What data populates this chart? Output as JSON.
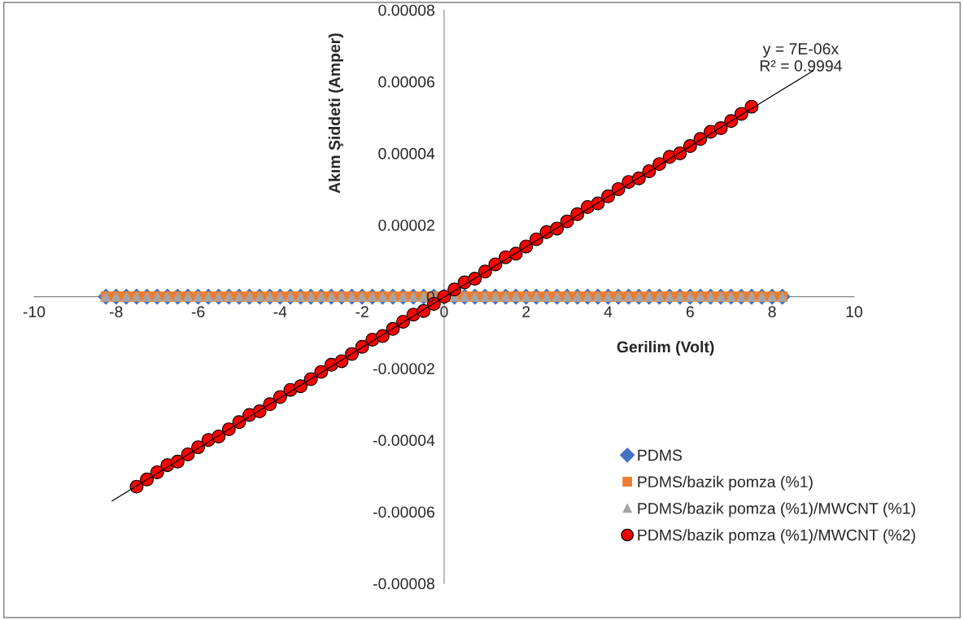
{
  "chart_data": {
    "type": "scatter",
    "xlabel": "Gerilim (Volt)",
    "ylabel": "Akım Şiddeti (Amper)",
    "annotations": [
      "y = 7E-06x\nR² = 0.9994"
    ],
    "xlim": [
      -10,
      10
    ],
    "xticks": [
      -10,
      -8,
      -6,
      -4,
      -2,
      0,
      2,
      4,
      6,
      8,
      10
    ],
    "ylim": [
      -8e-05,
      8e-05
    ],
    "yticks": [
      {
        "value": -8e-05,
        "label": "-0.00008"
      },
      {
        "value": -6e-05,
        "label": "-0.00006"
      },
      {
        "value": -4e-05,
        "label": "-0.00004"
      },
      {
        "value": -2e-05,
        "label": "-0.00002"
      },
      {
        "value": 0,
        "label": "0"
      },
      {
        "value": 2e-05,
        "label": "0.00002"
      },
      {
        "value": 4e-05,
        "label": "0.00004"
      },
      {
        "value": 6e-05,
        "label": "0.00006"
      },
      {
        "value": 8e-05,
        "label": "0.00008"
      }
    ],
    "grid": false,
    "legend": "bottom right",
    "x": [
      -8.25,
      -8,
      -7.75,
      -7.5,
      -7.25,
      -7,
      -6.75,
      -6.5,
      -6.25,
      -6,
      -5.75,
      -5.5,
      -5.25,
      -5,
      -4.75,
      -4.5,
      -4.25,
      -4,
      -3.75,
      -3.5,
      -3.25,
      -3,
      -2.75,
      -2.5,
      -2.25,
      -2,
      -1.75,
      -1.5,
      -1.25,
      -1,
      -0.75,
      -0.5,
      -0.25,
      0,
      0.25,
      0.5,
      0.75,
      1,
      1.25,
      1.5,
      1.75,
      2,
      2.25,
      2.5,
      2.75,
      3,
      3.25,
      3.5,
      3.75,
      4,
      4.25,
      4.5,
      4.75,
      5,
      5.25,
      5.5,
      5.75,
      6,
      6.25,
      6.5,
      6.75,
      7,
      7.25,
      7.5,
      7.75,
      8,
      8.25
    ],
    "series": [
      {
        "name": "PDMS",
        "color": "#4472c4",
        "marker": "diamond",
        "values": [
          0,
          0,
          0,
          0,
          0,
          0,
          0,
          0,
          0,
          0,
          0,
          0,
          0,
          0,
          0,
          0,
          0,
          0,
          0,
          0,
          0,
          0,
          0,
          0,
          0,
          0,
          0,
          0,
          0,
          0,
          0,
          0,
          0,
          0,
          0,
          0,
          0,
          0,
          0,
          0,
          0,
          0,
          0,
          0,
          0,
          0,
          0,
          0,
          0,
          0,
          0,
          0,
          0,
          0,
          0,
          0,
          0,
          0,
          0,
          0,
          0,
          0,
          0,
          0,
          0,
          0,
          0
        ]
      },
      {
        "name": "PDMS/bazik pomza (%1)",
        "color": "#ed7d31",
        "marker": "square",
        "values": [
          0,
          0,
          0,
          0,
          0,
          0,
          0,
          0,
          0,
          0,
          0,
          0,
          0,
          0,
          0,
          0,
          0,
          0,
          0,
          0,
          0,
          0,
          0,
          0,
          0,
          0,
          0,
          0,
          0,
          0,
          0,
          0,
          0,
          null,
          0,
          0,
          0,
          0,
          0,
          0,
          0,
          0,
          0,
          0,
          0,
          0,
          0,
          0,
          0,
          0,
          0,
          0,
          0,
          0,
          0,
          0,
          0,
          0,
          0,
          0,
          0,
          0,
          0,
          0,
          0,
          0,
          0
        ]
      },
      {
        "name": "PDMS/bazik pomza (%1)/MWCNT (%1)",
        "color": "#a5a5a5",
        "marker": "triangle",
        "values": [
          0,
          0,
          0,
          0,
          0,
          0,
          0,
          0,
          0,
          0,
          0,
          0,
          0,
          0,
          0,
          0,
          0,
          0,
          0,
          0,
          0,
          0,
          0,
          0,
          0,
          0,
          0,
          0,
          0,
          0,
          0,
          0,
          0,
          null,
          0,
          0,
          0,
          0,
          0,
          0,
          0,
          0,
          0,
          0,
          0,
          0,
          0,
          0,
          0,
          0,
          0,
          0,
          0,
          0,
          0,
          0,
          0,
          0,
          0,
          0,
          0,
          0,
          0,
          0,
          0,
          0,
          0
        ]
      },
      {
        "name": "PDMS/bazik pomza (%1)/MWCNT (%2)",
        "color": "#ff0000",
        "marker": "circle",
        "x": [
          -7.5,
          -7.25,
          -7,
          -6.75,
          -6.5,
          -6.25,
          -6,
          -5.75,
          -5.5,
          -5.25,
          -5,
          -4.75,
          -4.5,
          -4.25,
          -4,
          -3.75,
          -3.5,
          -3.25,
          -3,
          -2.75,
          -2.5,
          -2.25,
          -2,
          -1.75,
          -1.5,
          -1.25,
          -1,
          -0.75,
          -0.5,
          -0.25,
          0,
          0.25,
          0.5,
          0.75,
          1,
          1.25,
          1.5,
          1.75,
          2,
          2.25,
          2.5,
          2.75,
          3,
          3.25,
          3.5,
          3.75,
          4,
          4.25,
          4.5,
          4.75,
          5,
          5.25,
          5.5,
          5.75,
          6,
          6.25,
          6.5,
          6.75,
          7,
          7.25,
          7.5
        ],
        "values": [
          -5.3e-05,
          -5.1e-05,
          -4.9e-05,
          -4.7e-05,
          -4.6e-05,
          -4.4e-05,
          -4.2e-05,
          -4e-05,
          -3.9e-05,
          -3.7e-05,
          -3.5e-05,
          -3.3e-05,
          -3.2e-05,
          -3e-05,
          -2.8e-05,
          -2.6e-05,
          -2.5e-05,
          -2.3e-05,
          -2.1e-05,
          -1.9e-05,
          -1.8e-05,
          -1.6e-05,
          -1.4e-05,
          -1.2e-05,
          -1.1e-05,
          -9e-06,
          -7e-06,
          -5e-06,
          -4e-06,
          -2e-06,
          0,
          2e-06,
          4e-06,
          5e-06,
          7e-06,
          9e-06,
          1.1e-05,
          1.2e-05,
          1.4e-05,
          1.6e-05,
          1.8e-05,
          1.9e-05,
          2.1e-05,
          2.3e-05,
          2.5e-05,
          2.6e-05,
          2.8e-05,
          3e-05,
          3.2e-05,
          3.3e-05,
          3.5e-05,
          3.7e-05,
          3.9e-05,
          4e-05,
          4.2e-05,
          4.4e-05,
          4.6e-05,
          4.7e-05,
          4.9e-05,
          5.1e-05,
          5.3e-05
        ]
      },
      {
        "type": "line",
        "color": "#000000",
        "x": [
          -8.1,
          9
        ],
        "values": [
          -5.7e-05,
          6.3e-05
        ]
      }
    ]
  }
}
